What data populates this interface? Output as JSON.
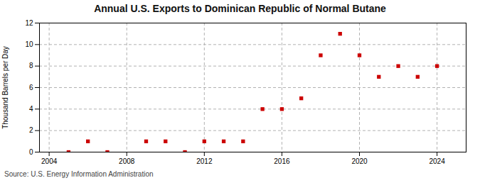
{
  "chart_data": {
    "type": "scatter",
    "title": "Annual U.S. Exports to Dominican Republic of Normal Butane",
    "ylabel": "Thousand Barrels per Day",
    "annotation": "Source: U.S. Energy Information Administration",
    "x": [
      2005,
      2006,
      2007,
      2009,
      2010,
      2011,
      2012,
      2013,
      2014,
      2015,
      2016,
      2017,
      2018,
      2019,
      2020,
      2021,
      2022,
      2023,
      2024
    ],
    "values": [
      0,
      1,
      0,
      1,
      1,
      0,
      1,
      1,
      1,
      4,
      4,
      5,
      9,
      11,
      9,
      7,
      8,
      7,
      8
    ],
    "color": "#cc0000",
    "marker": "square",
    "xlim": [
      2003.5,
      2025.5
    ],
    "xticks": [
      2004,
      2008,
      2012,
      2016,
      2020,
      2024
    ],
    "ylim": [
      0,
      12
    ],
    "yticks": [
      0,
      2,
      4,
      6,
      8,
      10,
      12
    ],
    "grid": true
  }
}
